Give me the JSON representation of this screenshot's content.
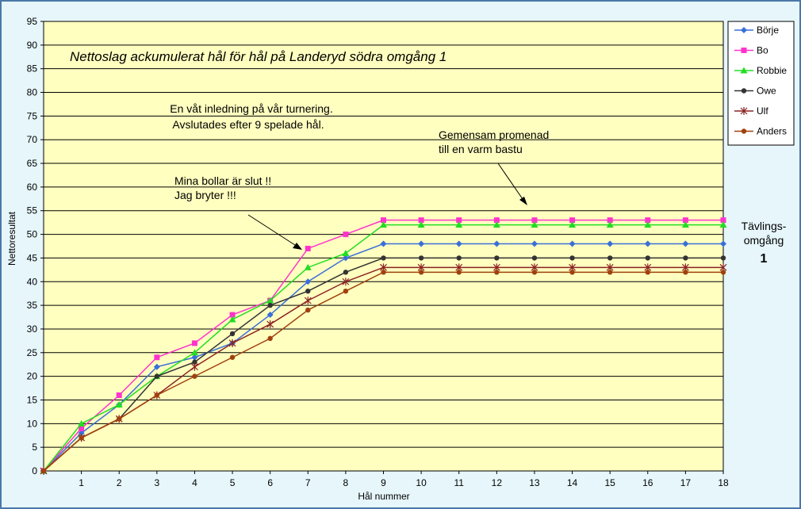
{
  "chart_data": {
    "type": "line",
    "title": "Nettoslag ackumulerat hål för hål på Landeryd södra omgång 1",
    "xlabel": "Hål nummer",
    "ylabel": "Nettoresultat",
    "x": [
      0,
      1,
      2,
      3,
      4,
      5,
      6,
      7,
      8,
      9,
      10,
      11,
      12,
      13,
      14,
      15,
      16,
      17,
      18
    ],
    "xticks": [
      "",
      "1",
      "2",
      "3",
      "4",
      "5",
      "6",
      "7",
      "8",
      "9",
      "10",
      "11",
      "12",
      "13",
      "14",
      "15",
      "16",
      "17",
      "18"
    ],
    "xlim": [
      0,
      18
    ],
    "ylim": [
      0,
      95
    ],
    "yticks": [
      0,
      5,
      10,
      15,
      20,
      25,
      30,
      35,
      40,
      45,
      50,
      55,
      60,
      65,
      70,
      75,
      80,
      85,
      90,
      95
    ],
    "grid": "horizontal",
    "legend_position": "right",
    "series": [
      {
        "name": "Börje",
        "color": "#3a6fd8",
        "marker": "diamond",
        "values": [
          0,
          8,
          14,
          22,
          24,
          27,
          33,
          40,
          45,
          48,
          48,
          48,
          48,
          48,
          48,
          48,
          48,
          48,
          48
        ]
      },
      {
        "name": "Bo",
        "color": "#ff33cc",
        "marker": "square",
        "values": [
          0,
          9,
          16,
          24,
          27,
          33,
          36,
          47,
          50,
          53,
          53,
          53,
          53,
          53,
          53,
          53,
          53,
          53,
          53
        ]
      },
      {
        "name": "Robbie",
        "color": "#22dd22",
        "marker": "triangle",
        "values": [
          0,
          10,
          14,
          20,
          25,
          32,
          36,
          43,
          46,
          52,
          52,
          52,
          52,
          52,
          52,
          52,
          52,
          52,
          52
        ]
      },
      {
        "name": "Owe",
        "color": "#333333",
        "marker": "circle",
        "values": [
          0,
          7,
          11,
          20,
          23,
          29,
          35,
          38,
          42,
          45,
          45,
          45,
          45,
          45,
          45,
          45,
          45,
          45,
          45
        ]
      },
      {
        "name": "Ulf",
        "color": "#8b2323",
        "marker": "star",
        "values": [
          0,
          7,
          11,
          16,
          22,
          27,
          31,
          36,
          40,
          43,
          43,
          43,
          43,
          43,
          43,
          43,
          43,
          43,
          43
        ]
      },
      {
        "name": "Anders",
        "color": "#a0410d",
        "marker": "circle",
        "values": [
          0,
          7,
          11,
          16,
          20,
          24,
          28,
          34,
          38,
          42,
          42,
          42,
          42,
          42,
          42,
          42,
          42,
          42,
          42
        ]
      }
    ],
    "annotations": {
      "wet_line1": "En våt inledning på vår turnering.",
      "wet_line2": "Avslutades efter 9 spelade hål.",
      "walk_line1": "Gemensam promenad",
      "walk_line2": "till en varm bastu",
      "balls_line1": "Mina bollar är slut !!",
      "balls_line2": "Jag bryter !!!",
      "round_line1": "Tävlings-",
      "round_line2": "omgång",
      "round_number": "1"
    }
  }
}
